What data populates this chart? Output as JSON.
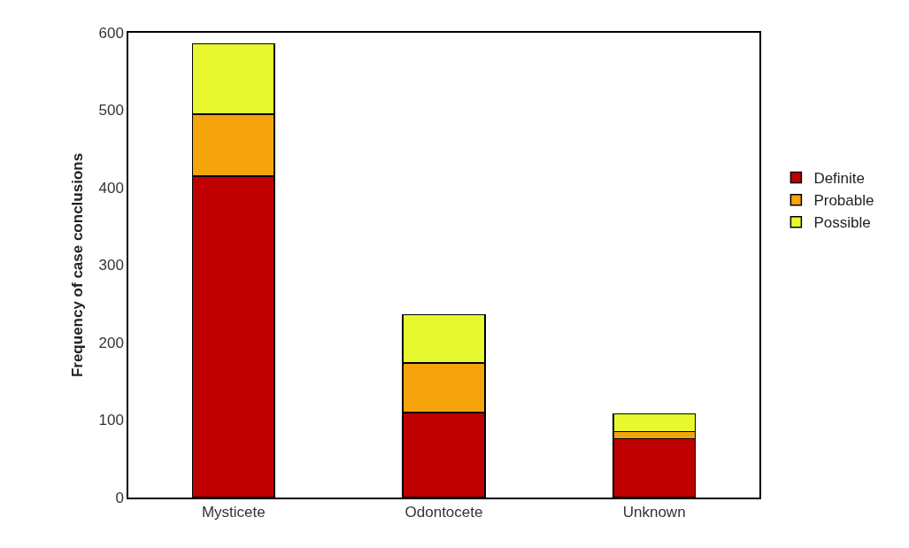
{
  "chart_data": {
    "type": "bar",
    "stacked": true,
    "ylabel": "Frequency of case conclusions",
    "categories": [
      "Mysticete",
      "Odontocete",
      "Unknown"
    ],
    "series": [
      {
        "name": "Definite",
        "color": "#c00000",
        "values": [
          415,
          110,
          76
        ]
      },
      {
        "name": "Probable",
        "color": "#f5a40c",
        "values": [
          80,
          64,
          9
        ]
      },
      {
        "name": "Possible",
        "color": "#e8f82e",
        "values": [
          91,
          62,
          23
        ]
      }
    ],
    "ylim": [
      0,
      600
    ],
    "yticks": [
      0,
      100,
      200,
      300,
      400,
      500,
      600
    ],
    "grid": false,
    "legend": "right"
  }
}
